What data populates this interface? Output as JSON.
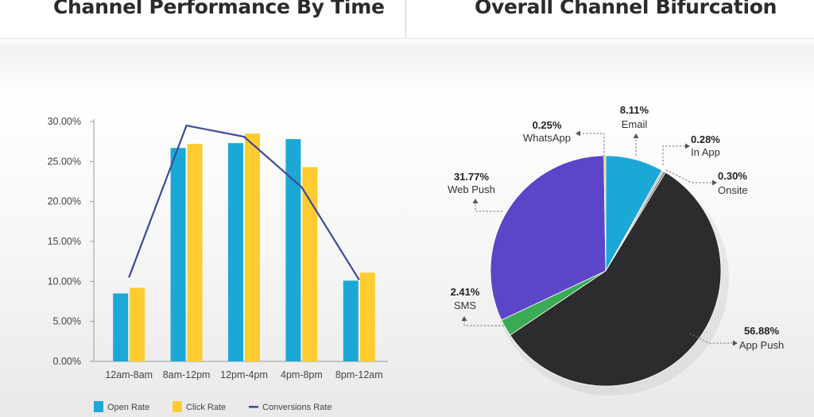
{
  "header": {
    "left_title": "Channel Performance By Time",
    "right_title": "Overall Channel Bifurcation"
  },
  "chart_data": [
    {
      "type": "bar",
      "title": "Channel Performance By Time",
      "categories": [
        "12am-8am",
        "8am-12pm",
        "12pm-4pm",
        "4pm-8pm",
        "8pm-12am"
      ],
      "y_ticks": [
        "0.00%",
        "5.00%",
        "10.00%",
        "15.00%",
        "20.00%",
        "25.00%",
        "30.00%"
      ],
      "ylim": [
        0,
        30
      ],
      "grid": false,
      "legend_position": "bottom",
      "series": [
        {
          "name": "Open Rate",
          "kind": "bar",
          "color": "#1ba8d6",
          "values": [
            8.5,
            26.7,
            27.3,
            27.8,
            10.1
          ]
        },
        {
          "name": "Click Rate",
          "kind": "bar",
          "color": "#fecc2f",
          "values": [
            9.2,
            27.2,
            28.5,
            24.3,
            11.1
          ]
        },
        {
          "name": "Conversions Rate",
          "kind": "line",
          "color": "#3d4a9a",
          "values": [
            10.5,
            29.5,
            28.1,
            21.8,
            10.2
          ]
        }
      ]
    },
    {
      "type": "pie",
      "title": "Overall Channel Bifurcation",
      "slices": [
        {
          "label": "Email",
          "value": 8.11,
          "display": "8.11%",
          "color": "#1ba8d6"
        },
        {
          "label": "In App",
          "value": 0.28,
          "display": "0.28%",
          "color": "#b9b9b9"
        },
        {
          "label": "Onsite",
          "value": 0.3,
          "display": "0.30%",
          "color": "#7a7a7a"
        },
        {
          "label": "App Push",
          "value": 56.88,
          "display": "56.88%",
          "color": "#2c2c2e"
        },
        {
          "label": "SMS",
          "value": 2.41,
          "display": "2.41%",
          "color": "#3aaa55"
        },
        {
          "label": "Web Push",
          "value": 31.77,
          "display": "31.77%",
          "color": "#5c45c8"
        },
        {
          "label": "WhatsApp",
          "value": 0.25,
          "display": "0.25%",
          "color": "#e8d04a"
        }
      ]
    }
  ]
}
